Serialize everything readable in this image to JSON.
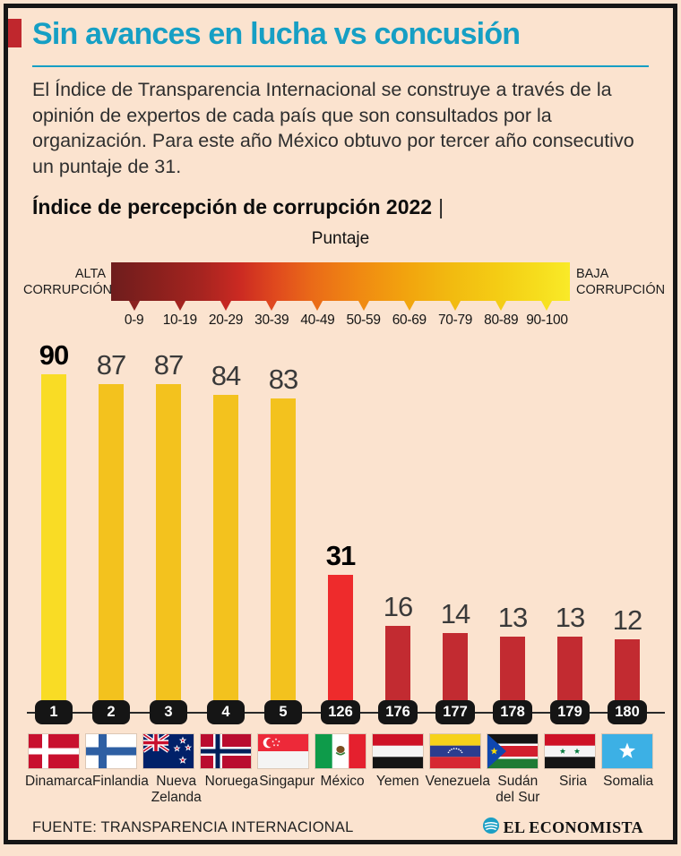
{
  "header": {
    "title": "Sin avances en lucha vs concusión",
    "accent_color": "#c0272d",
    "title_color": "#169fc4"
  },
  "intro": "El Índice de Transparencia Internacional se construye a través de la opinión de expertos de cada país que son consultados por la organización. Para este año México obtuvo por tercer año consecutivo un puntaje de 31.",
  "subtitle": "Índice de percepción de corrupción 2022",
  "subtitle_separator": "|",
  "legend": {
    "title": "Puntaje",
    "high_label": "ALTA CORRUPCIÓN",
    "low_label": "BAJA CORRUPCIÓN",
    "ranges": [
      "0-9",
      "10-19",
      "20-29",
      "30-39",
      "40-49",
      "50-59",
      "60-69",
      "70-79",
      "80-89",
      "90-100"
    ],
    "tick_colors": [
      "#8a211f",
      "#a3231f",
      "#c52722",
      "#df4820",
      "#eb6d16",
      "#f08b12",
      "#f2a60e",
      "#f2bb10",
      "#f4cd15",
      "#f7e121"
    ]
  },
  "chart_data": {
    "type": "bar",
    "title": "Índice de percepción de corrupción 2022",
    "unit_label": "Puntaje",
    "categories": [
      "Dinamarca",
      "Finlandia",
      "Nueva Zelanda",
      "Noruega",
      "Singapur",
      "México",
      "Yemen",
      "Venezuela",
      "Sudán del Sur",
      "Siria",
      "Somalia"
    ],
    "values": [
      90,
      87,
      87,
      84,
      83,
      31,
      16,
      14,
      13,
      13,
      12
    ],
    "ranks": [
      "1",
      "2",
      "3",
      "4",
      "5",
      "126",
      "176",
      "177",
      "178",
      "179",
      "180"
    ],
    "bar_colors": [
      "#f9dc25",
      "#f3c21e",
      "#f3c21e",
      "#f3c21e",
      "#f3c21e",
      "#ee2b2c",
      "#c22b31",
      "#c22b31",
      "#c22b31",
      "#c22b31",
      "#c22b31"
    ],
    "bold_values": [
      true,
      false,
      false,
      false,
      false,
      true,
      false,
      false,
      false,
      false,
      false
    ],
    "flags": [
      "denmark",
      "finland",
      "new-zealand",
      "norway",
      "singapore",
      "mexico",
      "yemen",
      "venezuela",
      "south-sudan",
      "syria",
      "somalia"
    ],
    "name_lines": [
      [
        "Dinamarca"
      ],
      [
        "Finlandia"
      ],
      [
        "Nueva",
        "Zelanda"
      ],
      [
        "Noruega"
      ],
      [
        "Singapur"
      ],
      [
        "México"
      ],
      [
        "Yemen"
      ],
      [
        "Venezuela"
      ],
      [
        "Sudán",
        "del Sur"
      ],
      [
        "Siria"
      ],
      [
        "Somalia"
      ]
    ],
    "ylim": [
      0,
      100
    ],
    "grid": false
  },
  "footer": {
    "source": "FUENTE: TRANSPARENCIA INTERNACIONAL",
    "brand": "EL ECONOMISTA",
    "brand_color": "#1b9fc4"
  }
}
